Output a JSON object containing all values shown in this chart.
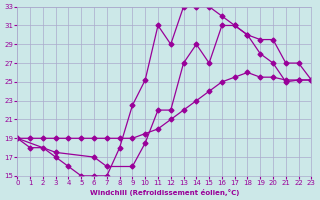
{
  "xlabel": "Windchill (Refroidissement éolien,°C)",
  "bg_color": "#cce8e8",
  "grid_color": "#aaaacc",
  "line_color": "#990099",
  "marker_color": "#990099",
  "xlim": [
    0,
    23
  ],
  "ylim": [
    15,
    33
  ],
  "xticks": [
    0,
    1,
    2,
    3,
    4,
    5,
    6,
    7,
    8,
    9,
    10,
    11,
    12,
    13,
    14,
    15,
    16,
    17,
    18,
    19,
    20,
    21,
    22,
    23
  ],
  "yticks": [
    15,
    17,
    19,
    21,
    23,
    25,
    27,
    29,
    31,
    33
  ],
  "curve1_x": [
    0,
    1,
    2,
    3,
    4,
    5,
    6,
    7,
    8,
    9,
    10,
    11,
    12,
    13,
    14,
    15,
    16,
    17,
    18,
    19,
    20,
    21,
    22,
    23
  ],
  "curve1_y": [
    19,
    18,
    18,
    17,
    16,
    15,
    15,
    15,
    18,
    22.5,
    25.2,
    31,
    29,
    33,
    33,
    33,
    32,
    31,
    30,
    28,
    27,
    25,
    25.2,
    25.2
  ],
  "curve2_x": [
    0,
    1,
    2,
    3,
    4,
    5,
    6,
    7,
    8,
    9,
    10,
    11,
    12,
    13,
    14,
    15,
    16,
    17,
    18,
    19,
    20,
    21,
    22,
    23
  ],
  "curve2_y": [
    19,
    19,
    19,
    19,
    19,
    19,
    19,
    19,
    19,
    19,
    19.5,
    20,
    21,
    22,
    23,
    24,
    25,
    25.5,
    26,
    25.5,
    25.5,
    25.2,
    25.2,
    25.2
  ],
  "curve3_x": [
    0,
    3,
    6,
    7,
    9,
    10,
    11,
    12,
    13,
    14,
    15,
    16,
    17,
    18,
    19,
    20,
    21,
    22,
    23
  ],
  "curve3_y": [
    19,
    17.5,
    17,
    16,
    16,
    18.5,
    22,
    22,
    27,
    29,
    27,
    31,
    31,
    30,
    29.5,
    29.5,
    27,
    27,
    25.2
  ]
}
